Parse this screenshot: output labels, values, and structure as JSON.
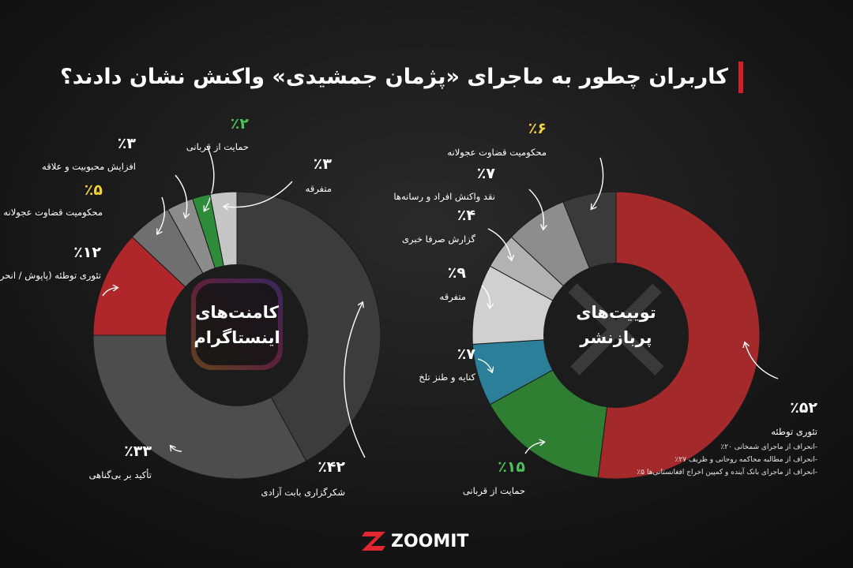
{
  "title": "کاربران چطور به ماجرای «پژمان جمشیدی» واکنش نشان دادند؟",
  "brand": "ZOOMIT",
  "chart_data": [
    {
      "type": "donut",
      "center_label": [
        "کامنت‌های",
        "اینستاگرام"
      ],
      "categories": [
        "شکرگزاری بابت آزادی",
        "تأکید بر بی‌گناهی",
        "تئوری توطئه (پاپوش / انحراف افکار عمومی)",
        "محکومیت قضاوت عجولانه",
        "افزایش محبوبیت و علاقه",
        "حمایت از قربانی",
        "متفرقه"
      ],
      "values": [
        42,
        33,
        12,
        5,
        3,
        2,
        3
      ],
      "value_labels": [
        "٪۴۲",
        "٪۳۳",
        "٪۱۲",
        "٪۵",
        "٪۳",
        "٪۲",
        "٪۳"
      ],
      "colors": [
        "#3c3c3c",
        "#4d4d4d",
        "#b0272b",
        "#6f6f6f",
        "#8c8c8c",
        "#2e8b3a",
        "#c6c6c6"
      ],
      "label_colors": [
        "#ffffff",
        "#ffffff",
        "#ffffff",
        "#f2d13a",
        "#ffffff",
        "#4cc159",
        "#ffffff"
      ]
    },
    {
      "type": "donut",
      "center_label": [
        "توییت‌های",
        "پربازنشر"
      ],
      "categories": [
        "تئوری توطئه",
        "حمایت از قربانی",
        "کنایه و طنز تلخ",
        "متفرقه",
        "گزارش صرفا خبری",
        "نقد واکنش افراد و رسانه‌ها",
        "محکومیت قضاوت عجولانه"
      ],
      "values": [
        52,
        15,
        7,
        9,
        4,
        7,
        6
      ],
      "value_labels": [
        "٪۵۲",
        "٪۱۵",
        "٪۷",
        "٪۹",
        "٪۴",
        "٪۷",
        "٪۶"
      ],
      "colors": [
        "#a3292a",
        "#2f7f33",
        "#2b7f99",
        "#d0d0d0",
        "#b2b2b2",
        "#8d8d8d",
        "#3a3a3a"
      ],
      "label_colors": [
        "#ffffff",
        "#4cc159",
        "#ffffff",
        "#ffffff",
        "#ffffff",
        "#ffffff",
        "#f2d13a"
      ],
      "notes": [
        "-انحراف از ماجرای شمخانی ۲۰٪",
        "-انحراف از مطالبه محاکمه روحانی و ظریف ۲۷٪",
        "-انحراف از ماجرای بانک آینده و کمپین اخراج افغانستانی‌ها ۵٪"
      ]
    }
  ]
}
